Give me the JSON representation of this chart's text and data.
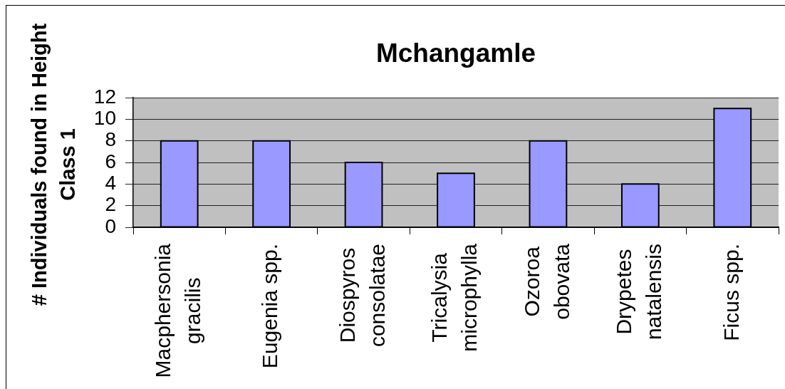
{
  "chart_data": {
    "type": "bar",
    "title": "Mchangamle",
    "ylabel": "# Individuals found in Height Class 1",
    "categories": [
      "Macphersonia gracilis",
      "Eugenia spp.",
      "Diospyros consolatae",
      "Tricalysia microphylla",
      "Ozoroa obovata",
      "Drypetes natalensis",
      "Ficus spp."
    ],
    "values": [
      8,
      8,
      6,
      5,
      8,
      4,
      11
    ],
    "color": "#9999ff",
    "ylim": [
      0,
      12
    ],
    "yticks": [
      0,
      2,
      4,
      6,
      8,
      10,
      12
    ],
    "grid": "y"
  }
}
